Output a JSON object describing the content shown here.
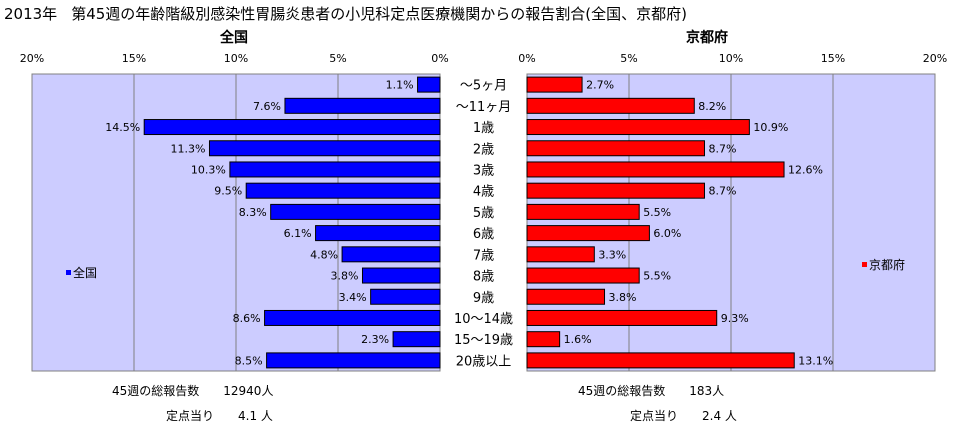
{
  "chart_data": {
    "type": "bar",
    "title_year": "2013年",
    "title": "第45週の年齢階級別感染性胃腸炎患者の小児科定点医療機関からの報告割合(全国、京都府)",
    "categories": [
      "～5ヶ月",
      "～11ヶ月",
      "1歳",
      "2歳",
      "3歳",
      "4歳",
      "5歳",
      "6歳",
      "7歳",
      "8歳",
      "9歳",
      "10～14歳",
      "15～19歳",
      "20歳以上"
    ],
    "series": [
      {
        "name": "全国",
        "side_title": "全国",
        "color": "#0000ff",
        "values": [
          1.1,
          7.6,
          14.5,
          11.3,
          10.3,
          9.5,
          8.3,
          6.1,
          4.8,
          3.8,
          3.4,
          8.6,
          2.3,
          8.5
        ],
        "labels": [
          "1.1%",
          "7.6%",
          "14.5%",
          "11.3%",
          "10.3%",
          "9.5%",
          "8.3%",
          "6.1%",
          "4.8%",
          "3.8%",
          "3.4%",
          "8.6%",
          "2.3%",
          "8.5%"
        ]
      },
      {
        "name": "京都府",
        "side_title": "京都府",
        "color": "#ff0000",
        "values": [
          2.7,
          8.2,
          10.9,
          8.7,
          12.6,
          8.7,
          5.5,
          6.0,
          3.3,
          5.5,
          3.8,
          9.3,
          1.6,
          13.1
        ],
        "labels": [
          "2.7%",
          "8.2%",
          "10.9%",
          "8.7%",
          "12.6%",
          "8.7%",
          "5.5%",
          "6.0%",
          "3.3%",
          "5.5%",
          "3.8%",
          "9.3%",
          "1.6%",
          "13.1%"
        ]
      }
    ],
    "xlim": [
      0,
      20
    ],
    "x_ticks": [
      0,
      5,
      10,
      15,
      20
    ],
    "x_tick_labels": [
      "0%",
      "5%",
      "10%",
      "15%",
      "20%"
    ],
    "grid": true,
    "plot_background": "#ccccff",
    "legend_left": "全国",
    "legend_right": "京都府"
  },
  "summary": {
    "left_reports": "45週の総報告数　　12940人",
    "left_per_site": "定点当り　　4.1 人",
    "right_reports": "45週の総報告数　　183人",
    "right_per_site": "定点当り　　2.4 人"
  }
}
